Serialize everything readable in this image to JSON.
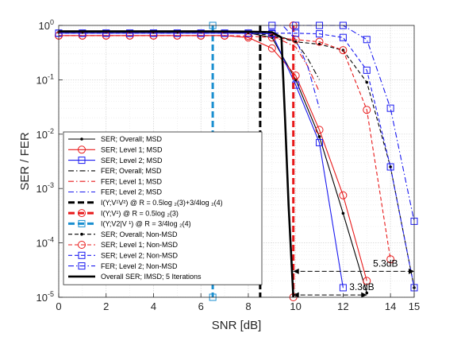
{
  "chart_data": {
    "type": "line",
    "xlabel": "SNR [dB]",
    "ylabel": "SER / FER",
    "xlim": [
      0,
      15
    ],
    "ylim": [
      1e-05,
      1
    ],
    "yscale": "log",
    "grid": true,
    "legend_position": "lower-left",
    "xticks": [
      "0",
      "2",
      "4",
      "6",
      "8",
      "10",
      "12",
      "14",
      "15"
    ],
    "yticks": [
      "10^0",
      "10^-1",
      "10^-2",
      "10^-3",
      "10^-4",
      "10^-5"
    ],
    "series": [
      {
        "name": "SER; Overall; MSD",
        "color": "#000000",
        "dash": "solid",
        "marker": "dot",
        "x": [
          0,
          1,
          2,
          3,
          4,
          5,
          6,
          7,
          8,
          9,
          10,
          11,
          12,
          13
        ],
        "y": [
          0.75,
          0.75,
          0.75,
          0.75,
          0.75,
          0.75,
          0.75,
          0.75,
          0.73,
          0.6,
          0.1,
          0.009,
          0.00035,
          1.2e-05
        ]
      },
      {
        "name": "SER; Level 1; MSD",
        "color": "#e8191a",
        "dash": "solid",
        "marker": "circle",
        "x": [
          0,
          1,
          2,
          3,
          4,
          5,
          6,
          7,
          8,
          9,
          10,
          11,
          12,
          13
        ],
        "y": [
          0.65,
          0.65,
          0.65,
          0.65,
          0.65,
          0.65,
          0.65,
          0.65,
          0.6,
          0.38,
          0.12,
          0.012,
          0.00075,
          2e-05
        ]
      },
      {
        "name": "SER; Level 2; MSD",
        "color": "#1a1af0",
        "dash": "solid",
        "marker": "square",
        "x": [
          0,
          1,
          2,
          3,
          4,
          5,
          6,
          7,
          8,
          9,
          10,
          11,
          12
        ],
        "y": [
          0.72,
          0.72,
          0.72,
          0.72,
          0.72,
          0.72,
          0.72,
          0.72,
          0.72,
          0.7,
          0.08,
          0.007,
          1.5e-05
        ]
      },
      {
        "name": "FER; Overall; MSD",
        "color": "#000000",
        "dash": "dashdot",
        "marker": "none",
        "x": [
          9,
          10,
          10.5,
          11
        ],
        "y": [
          0.7,
          0.5,
          0.25,
          0.1
        ]
      },
      {
        "name": "FER; Level 1; MSD",
        "color": "#e8191a",
        "dash": "dashdot",
        "marker": "none",
        "x": [
          9,
          10,
          10.5,
          11
        ],
        "y": [
          0.65,
          0.4,
          0.18,
          0.06
        ]
      },
      {
        "name": "FER; Level 2; MSD",
        "color": "#1a1af0",
        "dash": "dashdot",
        "marker": "none",
        "x": [
          9.5,
          10,
          10.5,
          11
        ],
        "y": [
          0.95,
          0.55,
          0.18,
          0.03
        ]
      },
      {
        "name": "I(Y;V1V2) @ R = 0.5log2(3)+3/4log2(4)",
        "color": "#000000",
        "dash": "bigdash",
        "marker": "none",
        "x": [
          8.5,
          8.5
        ],
        "y": [
          1,
          1e-05
        ]
      },
      {
        "name": "I(Y;V1) @ R = 0.5log2(3)",
        "color": "#e8191a",
        "dash": "bigdash",
        "marker": "circle",
        "x": [
          9.9,
          9.9
        ],
        "y": [
          1,
          1e-05
        ]
      },
      {
        "name": "I(Y;V2|V1) @ R = 3/4log2(4)",
        "color": "#1a8fd0",
        "dash": "bigdash",
        "marker": "square",
        "x": [
          6.5,
          6.5
        ],
        "y": [
          1,
          1e-05
        ]
      },
      {
        "name": "SER; Overall; Non-MSD",
        "color": "#000000",
        "dash": "dashed",
        "marker": "dot",
        "x": [
          0,
          1,
          2,
          3,
          4,
          5,
          6,
          7,
          8,
          9,
          10,
          11,
          12,
          13,
          14,
          15
        ],
        "y": [
          0.75,
          0.75,
          0.75,
          0.75,
          0.75,
          0.75,
          0.75,
          0.75,
          0.74,
          0.65,
          0.5,
          0.45,
          0.35,
          0.09,
          0.0025,
          1.5e-05
        ]
      },
      {
        "name": "SER; Level 1; Non-MSD",
        "color": "#e8191a",
        "dash": "dashed",
        "marker": "circle",
        "x": [
          0,
          1,
          2,
          3,
          4,
          5,
          6,
          7,
          8,
          9,
          10,
          11,
          12,
          13,
          14
        ],
        "y": [
          0.65,
          0.65,
          0.65,
          0.65,
          0.65,
          0.65,
          0.65,
          0.65,
          0.64,
          0.6,
          0.55,
          0.5,
          0.35,
          0.028,
          5e-05
        ]
      },
      {
        "name": "SER; Level 2; Non-MSD",
        "color": "#1a1af0",
        "dash": "dashed",
        "marker": "square",
        "x": [
          0,
          1,
          2,
          3,
          4,
          5,
          6,
          7,
          8,
          9,
          10,
          11,
          12,
          13,
          14,
          15
        ],
        "y": [
          0.72,
          0.72,
          0.72,
          0.72,
          0.72,
          0.72,
          0.72,
          0.72,
          0.72,
          0.72,
          0.72,
          0.7,
          0.6,
          0.15,
          0.0025,
          1.5e-05
        ]
      },
      {
        "name": "FER; Level 2; Non-MSD",
        "color": "#1a1af0",
        "dash": "dashdot",
        "marker": "square",
        "x": [
          9,
          10,
          11,
          12,
          13,
          14,
          15
        ],
        "y": [
          1,
          1,
          1,
          1,
          0.55,
          0.03,
          0.00025
        ]
      },
      {
        "name": "Overall SER; IMSD; 5 Iterations",
        "color": "#000000",
        "dash": "solid",
        "thick": true,
        "marker": "none",
        "x": [
          0,
          2,
          4,
          6,
          8,
          9,
          9.4,
          9.55,
          9.7,
          9.9
        ],
        "y": [
          0.78,
          0.78,
          0.78,
          0.78,
          0.77,
          0.75,
          0.6,
          0.02,
          0.0005,
          1e-05
        ]
      }
    ],
    "legend": [
      "SER; Overall; MSD",
      "SER; Level 1; MSD",
      "SER; Level 2; MSD",
      "FER; Overall; MSD",
      "FER; Level 1; MSD",
      "FER; Level 2; MSD",
      "I(Y;V¹V²)  @ R = 0.5log  ₂(3)+3/4log  ₂(4)",
      "I(Y;V¹)       @ R = 0.5log  ₂(3)",
      "I(Y;V2|V ¹) @ R = 3/4log  ₂(4)",
      "SER; Overall; Non-MSD",
      "SER; Level 1; Non-MSD",
      "SER; Level 2; Non-MSD",
      "FER; Level 2; Non-MSD",
      "Overall SER; IMSD; 5 Iterations"
    ],
    "annotations": [
      {
        "text": "5.3dB",
        "x_from": 9.9,
        "x_to": 15,
        "y": 3e-05
      },
      {
        "text": "3.3dB",
        "x_from": 9.9,
        "x_to": 13,
        "y": 1.1e-05
      }
    ]
  }
}
